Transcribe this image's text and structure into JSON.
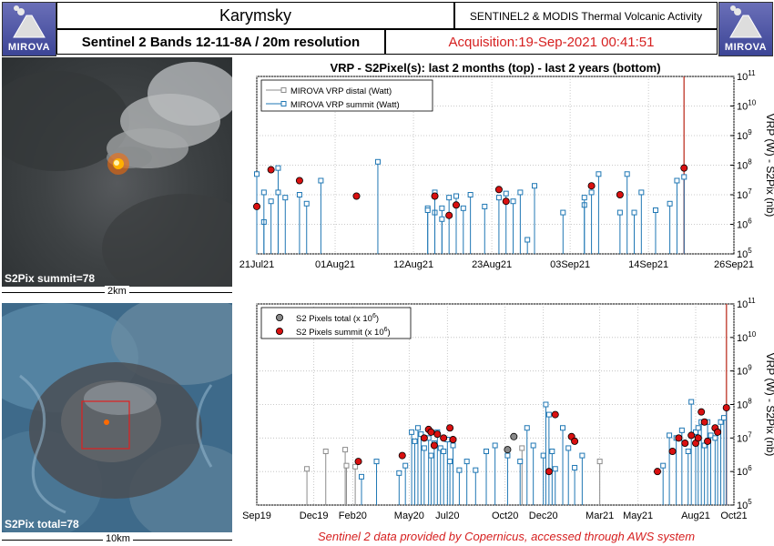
{
  "header": {
    "logo_left": "MIROVA",
    "logo_right": "MIROVA",
    "volcano": "Karymsky",
    "system": "SENTINEL2 & MODIS Thermal Volcanic Activity",
    "bands": "Sentinel 2 Bands 12-11-8A / 20m resolution",
    "acquisition": "Acquisition:19-Sep-2021 00:41:51"
  },
  "images": {
    "top_caption": "S2Pix summit=78",
    "top_scale": "2km",
    "bottom_caption": "S2Pix total=78",
    "bottom_scale": "10km"
  },
  "footer": "Sentinel 2 data provided by Copernicus, accessed through AWS system",
  "colors": {
    "accent_red": "#d62020",
    "summit_line": "#1f77b4",
    "distal_line": "#8c8c8c",
    "event_line": "#c0392b"
  },
  "chart_data": [
    {
      "type": "scatter",
      "title": "VRP - S2Pixel(s): last 2 months (top) - last 2 years (bottom)",
      "ylabel": "VRP (W) - S2Pix (nb)",
      "yscale": "log",
      "ylim": [
        100000,
        100000000000
      ],
      "yticks": [
        "10^5",
        "10^6",
        "10^7",
        "10^8",
        "10^9",
        "10^10",
        "10^11"
      ],
      "xlim": [
        "2021-07-21",
        "2021-09-26"
      ],
      "xticks": [
        "21Jul21",
        "01Aug21",
        "12Aug21",
        "23Aug21",
        "03Sep21",
        "14Sep21",
        "26Sep21"
      ],
      "legend": [
        "MIROVA VRP distal (Watt)",
        "MIROVA VRP summit (Watt)"
      ],
      "legend_position": "top-left",
      "event_date": "2021-09-19",
      "series": [
        {
          "name": "MIROVA VRP summit (Watt)",
          "x": [
            "2021-07-21",
            "2021-07-22",
            "2021-07-22",
            "2021-07-23",
            "2021-07-24",
            "2021-07-24",
            "2021-07-25",
            "2021-07-27",
            "2021-07-28",
            "2021-07-30",
            "2021-08-07",
            "2021-08-14",
            "2021-08-14",
            "2021-08-15",
            "2021-08-15",
            "2021-08-16",
            "2021-08-16",
            "2021-08-17",
            "2021-08-18",
            "2021-08-19",
            "2021-08-20",
            "2021-08-22",
            "2021-08-24",
            "2021-08-25",
            "2021-08-26",
            "2021-08-27",
            "2021-08-28",
            "2021-08-29",
            "2021-09-02",
            "2021-09-05",
            "2021-09-05",
            "2021-09-06",
            "2021-09-07",
            "2021-09-10",
            "2021-09-11",
            "2021-09-12",
            "2021-09-13",
            "2021-09-15",
            "2021-09-17",
            "2021-09-18",
            "2021-09-19"
          ],
          "y": [
            50000000.0,
            1200000.0,
            12000000.0,
            6000000.0,
            80000000.0,
            12000000.0,
            8000000.0,
            10000000.0,
            5000000.0,
            30000000.0,
            130000000.0,
            3500000.0,
            3000000.0,
            2500000.0,
            12000000.0,
            3500000.0,
            1500000.0,
            8000000.0,
            9000000.0,
            3500000.0,
            10000000.0,
            4000000.0,
            8000000.0,
            11000000.0,
            6000000.0,
            12000000.0,
            300000.0,
            20000000.0,
            2500000.0,
            4500000.0,
            8000000.0,
            12000000.0,
            50000000.0,
            2500000.0,
            50000000.0,
            2500000.0,
            12000000.0,
            3000000.0,
            5000000.0,
            30000000.0,
            40000000.0
          ]
        },
        {
          "name": "S2 Pixels summit (x 10^6)",
          "x": [
            "2021-07-21",
            "2021-07-23",
            "2021-07-27",
            "2021-08-04",
            "2021-08-15",
            "2021-08-17",
            "2021-08-18",
            "2021-08-24",
            "2021-08-25",
            "2021-09-06",
            "2021-09-10",
            "2021-09-19"
          ],
          "y": [
            4000000.0,
            70000000.0,
            30000000.0,
            9000000.0,
            9000000.0,
            2000000.0,
            4500000.0,
            15000000.0,
            6000000.0,
            20000000.0,
            10000000.0,
            80000000.0
          ]
        }
      ]
    },
    {
      "type": "scatter",
      "ylabel": "VRP (W) - S2Pix (nb)",
      "yscale": "log",
      "ylim": [
        100000,
        100000000000
      ],
      "yticks": [
        "10^5",
        "10^6",
        "10^7",
        "10^8",
        "10^9",
        "10^10",
        "10^11"
      ],
      "xlim": [
        "2019-09-01",
        "2021-10-01"
      ],
      "xticks": [
        "Sep19",
        "Dec19",
        "Feb20",
        "May20",
        "Jul20",
        "Oct20",
        "Dec20",
        "Mar21",
        "May21",
        "Aug21",
        "Oct21"
      ],
      "legend": [
        "S2 Pixels total (x 10^6)",
        "S2 Pixels summit (x 10^6)"
      ],
      "legend_position": "top-left",
      "event_date": "2021-09-19",
      "series": [
        {
          "name": "MIROVA VRP distal (Watt)",
          "x": [
            "2019-11-20",
            "2019-12-20",
            "2020-01-20",
            "2020-01-22",
            "2020-02-05",
            "2020-10-28",
            "2021-03-01"
          ],
          "y": [
            1200000.0,
            4000000.0,
            4500000.0,
            1500000.0,
            1400000.0,
            5000000.0,
            2000000.0
          ]
        },
        {
          "name": "MIROVA VRP summit (Watt)",
          "x": [
            "2020-02-15",
            "2020-03-10",
            "2020-04-15",
            "2020-04-25",
            "2020-05-05",
            "2020-05-10",
            "2020-05-15",
            "2020-05-20",
            "2020-05-25",
            "2020-06-01",
            "2020-06-05",
            "2020-06-10",
            "2020-06-15",
            "2020-06-20",
            "2020-06-25",
            "2020-07-01",
            "2020-07-05",
            "2020-07-10",
            "2020-07-20",
            "2020-08-01",
            "2020-08-15",
            "2020-09-01",
            "2020-09-15",
            "2020-10-05",
            "2020-10-25",
            "2020-11-05",
            "2020-11-15",
            "2020-12-01",
            "2020-12-05",
            "2020-12-10",
            "2020-12-15",
            "2020-12-20",
            "2021-01-01",
            "2021-01-10",
            "2021-01-20",
            "2021-02-01",
            "2021-06-10",
            "2021-06-20",
            "2021-07-01",
            "2021-07-10",
            "2021-07-20",
            "2021-07-25",
            "2021-08-01",
            "2021-08-05",
            "2021-08-10",
            "2021-08-15",
            "2021-08-20",
            "2021-08-25",
            "2021-09-01",
            "2021-09-05",
            "2021-09-10",
            "2021-09-15",
            "2021-09-19"
          ],
          "y": [
            700000.0,
            2000000.0,
            900000.0,
            1500000.0,
            15000000.0,
            8000000.0,
            20000000.0,
            13000000.0,
            5000000.0,
            10000000.0,
            3000000.0,
            7000000.0,
            15000000.0,
            5000000.0,
            4000000.0,
            9000000.0,
            2000000.0,
            6000000.0,
            1100000.0,
            2000000.0,
            1100000.0,
            4000000.0,
            6000000.0,
            3000000.0,
            2000000.0,
            20000000.0,
            6000000.0,
            3000000.0,
            100000000.0,
            50000000.0,
            4000000.0,
            1200000.0,
            20000000.0,
            5000000.0,
            1300000.0,
            3000000.0,
            1500000.0,
            12000000.0,
            10000000.0,
            17000000.0,
            4000000.0,
            120000000.0,
            15000000.0,
            20000000.0,
            30000000.0,
            6000000.0,
            30000000.0,
            12000000.0,
            10000000.0,
            15000000.0,
            30000000.0,
            40000000.0,
            80000000.0
          ]
        },
        {
          "name": "S2 Pixels total (x 10^6)",
          "x": [
            "2020-10-05",
            "2020-10-15"
          ],
          "y": [
            4500000.0,
            11000000.0
          ]
        },
        {
          "name": "S2 Pixels summit (x 10^6)",
          "x": [
            "2020-02-10",
            "2020-04-20",
            "2020-05-25",
            "2020-06-01",
            "2020-06-05",
            "2020-06-10",
            "2020-06-15",
            "2020-06-25",
            "2020-07-05",
            "2020-07-10",
            "2020-12-10",
            "2020-12-20",
            "2021-01-15",
            "2021-01-20",
            "2021-06-01",
            "2021-06-25",
            "2021-07-05",
            "2021-07-15",
            "2021-07-25",
            "2021-08-01",
            "2021-08-05",
            "2021-08-10",
            "2021-08-15",
            "2021-08-20",
            "2021-09-01",
            "2021-09-05",
            "2021-09-19"
          ],
          "y": [
            2000000.0,
            3000000.0,
            10000000.0,
            18000000.0,
            15000000.0,
            6000000.0,
            13000000.0,
            10000000.0,
            20000000.0,
            9000000.0,
            1000000.0,
            50000000.0,
            11000000.0,
            8000000.0,
            1000000.0,
            4000000.0,
            10000000.0,
            7000000.0,
            12000000.0,
            7000000.0,
            10000000.0,
            60000000.0,
            30000000.0,
            8000000.0,
            20000000.0,
            15000000.0,
            80000000.0
          ]
        }
      ]
    }
  ]
}
